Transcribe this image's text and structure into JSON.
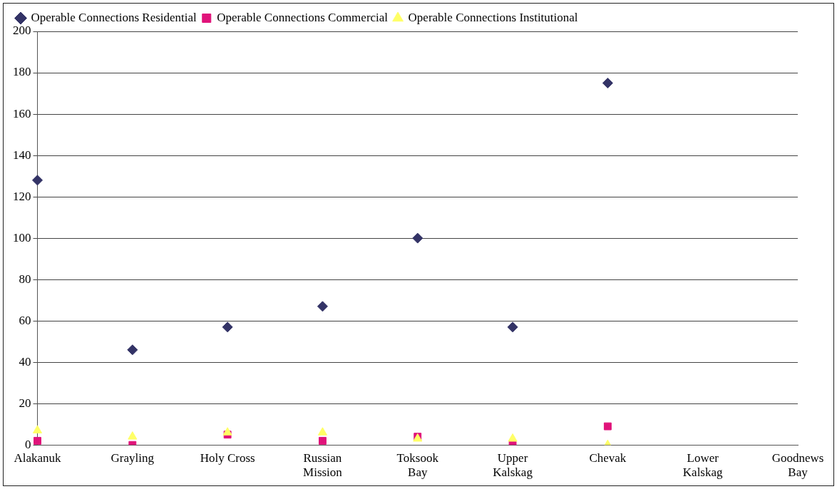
{
  "chart_data": {
    "type": "scatter",
    "categories": [
      "Alakanuk",
      "Grayling",
      "Holy Cross",
      "Russian Mission",
      "Toksook Bay",
      "Upper Kalskag",
      "Chevak",
      "Lower Kalskag",
      "Goodnews Bay"
    ],
    "series": [
      {
        "name": "Operable Connections Residential",
        "color": "#333366",
        "marker": "diamond",
        "values": [
          128,
          46,
          57,
          67,
          100,
          57,
          175,
          null,
          null
        ]
      },
      {
        "name": "Operable Connections Commercial",
        "color": "#e0137a",
        "marker": "square",
        "values": [
          2,
          0,
          5,
          2,
          4,
          0,
          9,
          null,
          null
        ]
      },
      {
        "name": "Operable Connections Institutional",
        "color": "#ffff66",
        "marker": "triangle",
        "values": [
          7,
          4,
          6,
          6,
          3,
          3,
          0,
          null,
          null
        ]
      }
    ],
    "ylim": [
      0,
      200
    ],
    "yticks": [
      0,
      20,
      40,
      60,
      80,
      100,
      120,
      140,
      160,
      180,
      200
    ],
    "grid": "y",
    "legend": "top"
  }
}
